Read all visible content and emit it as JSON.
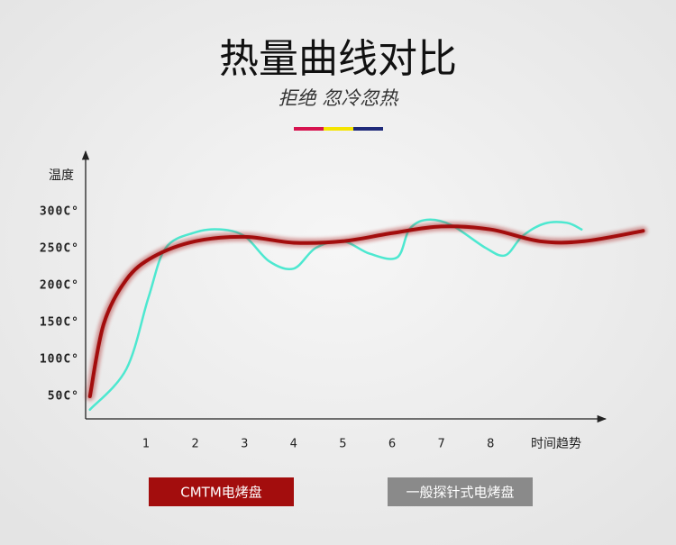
{
  "chart_data": {
    "type": "line",
    "title": "热量曲线对比",
    "subtitle": "拒绝 忽冷忽热",
    "y_label": "温度",
    "x_label": "时间趋势",
    "xlim": [
      -0.2,
      10.3
    ],
    "ylim": [
      20,
      380
    ],
    "xticks": [
      1,
      2,
      3,
      4,
      5,
      6,
      7,
      8
    ],
    "yticks": [
      {
        "value": 50,
        "label": "50C°"
      },
      {
        "value": 100,
        "label": "100C°"
      },
      {
        "value": 150,
        "label": "150C°"
      },
      {
        "value": 200,
        "label": "200C°"
      },
      {
        "value": 250,
        "label": "250C°"
      },
      {
        "value": 300,
        "label": "300C°"
      }
    ],
    "series": [
      {
        "name": "CMTM电烤盘",
        "color": "#a30d0d",
        "x": [
          -0.14,
          0.14,
          0.6,
          1.15,
          2,
          3,
          4,
          5,
          6,
          7,
          8,
          9,
          9.9,
          11.1
        ],
        "values": [
          50,
          148,
          208,
          239,
          260,
          266,
          258,
          260,
          271,
          280,
          276,
          260,
          260,
          274
        ]
      },
      {
        "name": "一般探针式电烤盘",
        "color": "#4de8d0",
        "legend_color": "#8a8a8a",
        "x": [
          -0.14,
          0.6,
          1.05,
          1.4,
          2,
          2.5,
          3,
          3.5,
          4,
          4.45,
          5,
          5.55,
          6.1,
          6.35,
          6.7,
          7.2,
          7.9,
          8.3,
          8.65,
          9.1,
          9.55,
          9.85
        ],
        "values": [
          32,
          87,
          184,
          251,
          272,
          276,
          267,
          233,
          223,
          251,
          260,
          243,
          238,
          276,
          289,
          282,
          251,
          241,
          267,
          284,
          285,
          276
        ]
      }
    ]
  }
}
